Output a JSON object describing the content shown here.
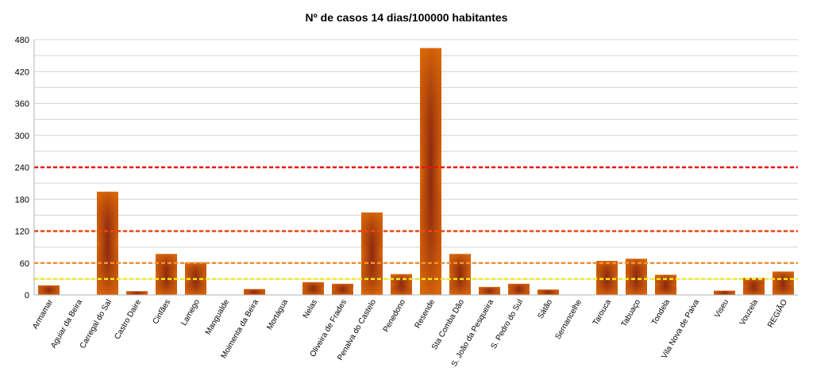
{
  "chart_data": {
    "type": "bar",
    "title": "Nº de casos 14 dias/100000 habitantes",
    "xlabel": "",
    "ylabel": "",
    "ylim": [
      0,
      480
    ],
    "yticks": [
      0,
      60,
      120,
      180,
      240,
      300,
      360,
      420,
      480
    ],
    "grid": true,
    "legend": "none",
    "categories": [
      "Armamar",
      "Aguiar da Beira",
      "Carregal do Sal",
      "Castro Daire",
      "Cinfães",
      "Lamego",
      "Mangualde",
      "Moimenta da Beira",
      "Mortágua",
      "Nelas",
      "Oliveira de Frades",
      "Penalva do Castelo",
      "Penedono",
      "Resende",
      "Sta Comba Dão",
      "S. João da Pesqueira",
      "S. Pedro do Sul",
      "Sátão",
      "Sernancelhe",
      "Tarouca",
      "Tabuaço",
      "Tondela",
      "Vila Nova de Paiva",
      "Viseu",
      "Vouzela",
      "REGIÃO"
    ],
    "series": [
      {
        "name": "Nº de casos 14 dias/100000 habitantes",
        "values": [
          18,
          0,
          194,
          7,
          77,
          61,
          0,
          11,
          0,
          24,
          21,
          155,
          39,
          464,
          77,
          15,
          21,
          10,
          0,
          64,
          68,
          38,
          0,
          8,
          32,
          44
        ]
      }
    ],
    "reference_lines": [
      {
        "value": 240,
        "color": "#ee1111"
      },
      {
        "value": 120,
        "color": "#ee4411"
      },
      {
        "value": 60,
        "color": "#f39030"
      },
      {
        "value": 30,
        "color": "#eeee22"
      }
    ],
    "bar_colors": {
      "edge": "#dd6a08",
      "center": "#8f2a10"
    }
  }
}
